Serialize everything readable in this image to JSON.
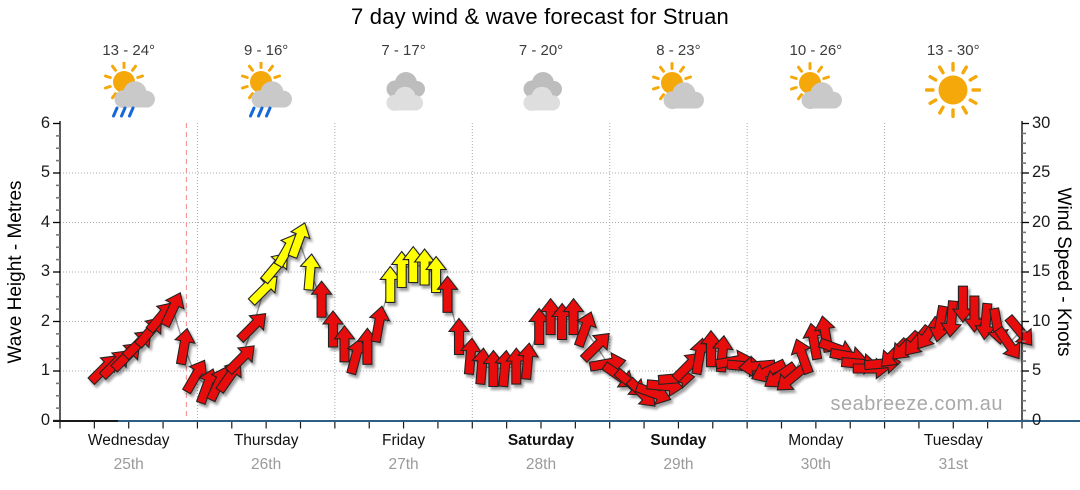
{
  "title": "7 day wind & wave forecast for Struan",
  "watermark": "seabreeze.com.au",
  "days": [
    {
      "name": "Wednesday",
      "date": "25th",
      "temp": "13 - 24°",
      "icon": "sun-cloud-rain",
      "bold": false
    },
    {
      "name": "Thursday",
      "date": "26th",
      "temp": "9 - 16°",
      "icon": "sun-cloud-rain",
      "bold": false
    },
    {
      "name": "Friday",
      "date": "27th",
      "temp": "7 - 17°",
      "icon": "cloudy",
      "bold": false
    },
    {
      "name": "Saturday",
      "date": "28th",
      "temp": "7 - 20°",
      "icon": "cloudy",
      "bold": true
    },
    {
      "name": "Sunday",
      "date": "29th",
      "temp": "8 - 23°",
      "icon": "sun-cloud",
      "bold": true
    },
    {
      "name": "Monday",
      "date": "30th",
      "temp": "10 - 26°",
      "icon": "sun-cloud",
      "bold": false
    },
    {
      "name": "Tuesday",
      "date": "31st",
      "temp": "13 - 30°",
      "icon": "sunny",
      "bold": false
    }
  ],
  "axes": {
    "left_title": "Wave Height - Metres",
    "left_ticks": [
      0,
      1,
      2,
      3,
      4,
      5,
      6
    ],
    "right_title": "Wind Speed - Knots",
    "right_ticks": [
      0,
      5,
      10,
      15,
      20,
      25,
      30
    ]
  },
  "colors": {
    "arrow_normal": "#e8100c",
    "arrow_strong": "#ffff00",
    "arrow_outline": "#222222",
    "connector_line": "#999999",
    "grid": "#aaaaaa",
    "now_line": "#f29a9a",
    "x_axis_line": "#305f85",
    "sun": "#f5a80a",
    "cloud_dark": "#bdbdbd",
    "cloud_mid": "#c9c9c9",
    "cloud_light": "#dedede",
    "rain": "#1668d9"
  },
  "chart_data": {
    "type": "line",
    "title": "7 day wind & wave forecast for Struan",
    "left_axis": {
      "label": "Wave Height - Metres",
      "range": [
        0,
        6
      ],
      "ticks": [
        0,
        1,
        2,
        3,
        4,
        5,
        6
      ]
    },
    "right_axis": {
      "label": "Wind Speed - Knots",
      "range": [
        0,
        30
      ],
      "ticks": [
        0,
        5,
        10,
        15,
        20,
        25,
        30
      ]
    },
    "grid": {
      "h_lines_knots": [
        5,
        10,
        15,
        20,
        25
      ],
      "v_lines_at_day_boundaries": true,
      "style": "dotted"
    },
    "now_marker": {
      "day_index": 0,
      "day_fraction": 0.92,
      "style": "dashed-red"
    },
    "categories_days": [
      "Wednesday 25th",
      "Thursday 26th",
      "Friday 27th",
      "Saturday 28th",
      "Sunday 29th",
      "Monday 30th",
      "Tuesday 31st"
    ],
    "series": [
      {
        "name": "Wind speed arrows (knots on right axis, wave-height metres equivalent = knots/5 on left axis)",
        "interval_hours": 2,
        "start_offset_days": 0.32,
        "strong_threshold_knots": 13,
        "knots": [
          5.25,
          5.75,
          6.5,
          7.75,
          9,
          10.5,
          11.25,
          7.5,
          4.5,
          3.5,
          3.75,
          4.5,
          6.25,
          9.5,
          13.25,
          15.5,
          17.25,
          18.25,
          15,
          12.25,
          9.25,
          7.75,
          6.5,
          7.5,
          9.75,
          13.75,
          15.25,
          15.75,
          15.5,
          14.75,
          12.75,
          8.5,
          6.5,
          5.5,
          5.25,
          5.25,
          5.5,
          6,
          9.5,
          10.5,
          10,
          10.5,
          9.25,
          7.5,
          5.75,
          4.5,
          3.75,
          2.75,
          2.75,
          3.5,
          4.25,
          5.5,
          6.5,
          7.25,
          6.75,
          6,
          5.5,
          5.5,
          5,
          4.5,
          4.25,
          6.5,
          8,
          8.75,
          7.25,
          6.5,
          5.75,
          5.25,
          5.75,
          6.75,
          7.5,
          8,
          8.75,
          9.75,
          10.25,
          11.75,
          10.75,
          10,
          9.5,
          7.75,
          9
        ],
        "direction_deg": [
          45,
          45,
          45,
          45,
          40,
          40,
          25,
          10,
          30,
          20,
          25,
          35,
          45,
          45,
          45,
          40,
          30,
          20,
          5,
          0,
          0,
          0,
          15,
          0,
          10,
          0,
          0,
          0,
          0,
          0,
          0,
          0,
          5,
          5,
          0,
          5,
          0,
          5,
          0,
          0,
          0,
          0,
          20,
          45,
          80,
          125,
          130,
          135,
          110,
          95,
          85,
          45,
          10,
          0,
          5,
          80,
          95,
          265,
          245,
          235,
          230,
          340,
          350,
          350,
          110,
          100,
          95,
          90,
          85,
          225,
          225,
          220,
          215,
          190,
          185,
          180,
          180,
          185,
          170,
          145,
          140
        ]
      }
    ]
  }
}
